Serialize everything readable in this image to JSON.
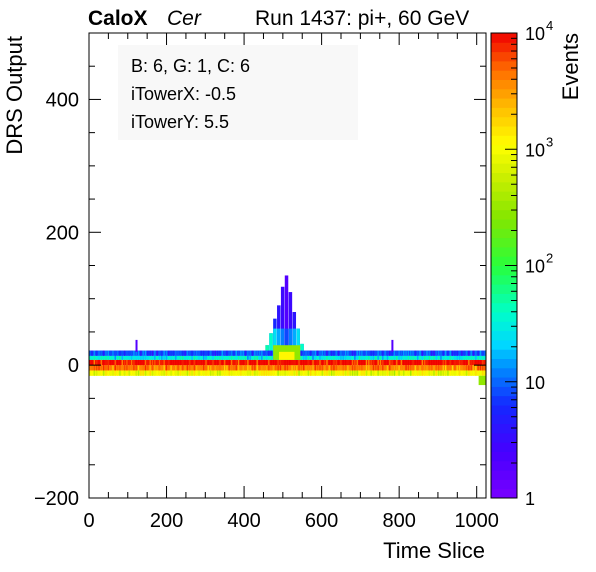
{
  "header": {
    "brand": "CaloX",
    "channel": "Cer",
    "run_info": "Run 1437: pi+, 60 GeV"
  },
  "info_box": {
    "line1": "B: 6, G: 1, C: 6",
    "line2": "iTowerX: -0.5",
    "line3": "iTowerY: 5.5"
  },
  "chart_data": {
    "type": "heatmap",
    "title": "Run 1437: pi+, 60 GeV",
    "xlabel": "Time Slice",
    "ylabel": "DRS Output",
    "zlabel": "Events",
    "xlim": [
      0,
      1024
    ],
    "ylim": [
      -200,
      500
    ],
    "zlim": [
      1,
      10000
    ],
    "z_scale": "log",
    "x_ticks": [
      "0",
      "200",
      "400",
      "600",
      "800",
      "1000"
    ],
    "y_ticks": [
      "−200",
      "0",
      "200",
      "400"
    ],
    "z_ticks": [
      {
        "value": 1,
        "label": "1"
      },
      {
        "value": 10,
        "label": "10"
      },
      {
        "value": 100,
        "label": "10",
        "exp": "2"
      },
      {
        "value": 1000,
        "label": "10",
        "exp": "3"
      },
      {
        "value": 10000,
        "label": "10",
        "exp": "4"
      }
    ],
    "bands": [
      {
        "x": [
          0,
          1024
        ],
        "y": [
          -16,
          -8
        ],
        "z": 900
      },
      {
        "x": [
          0,
          1024
        ],
        "y": [
          -8,
          0
        ],
        "z": 4000
      },
      {
        "x": [
          0,
          1024
        ],
        "y": [
          0,
          8
        ],
        "z": 9000
      },
      {
        "x": [
          0,
          1024
        ],
        "y": [
          8,
          14
        ],
        "z": 30
      },
      {
        "x": [
          0,
          1024
        ],
        "y": [
          14,
          22
        ],
        "z": 8
      }
    ],
    "peak": {
      "x_center": 505,
      "y_columns": [
        {
          "x": 455,
          "top": 30,
          "z": 12
        },
        {
          "x": 465,
          "top": 48,
          "z": 10
        },
        {
          "x": 475,
          "top": 70,
          "z": 6
        },
        {
          "x": 485,
          "top": 90,
          "z": 4
        },
        {
          "x": 495,
          "top": 118,
          "z": 3
        },
        {
          "x": 505,
          "top": 135,
          "z": 2
        },
        {
          "x": 515,
          "top": 110,
          "z": 3
        },
        {
          "x": 525,
          "top": 80,
          "z": 4
        },
        {
          "x": 535,
          "top": 55,
          "z": 6
        },
        {
          "x": 545,
          "top": 32,
          "z": 10
        }
      ],
      "core": {
        "x": [
          475,
          545
        ],
        "y": [
          8,
          30
        ],
        "z": 300
      }
    },
    "spikes": [
      {
        "x": 120,
        "y": [
          20,
          38
        ],
        "z": 2
      },
      {
        "x": 780,
        "y": [
          20,
          38
        ],
        "z": 2
      }
    ],
    "tail": {
      "x": [
        1005,
        1024
      ],
      "y": [
        -30,
        -16
      ],
      "z": 300
    }
  }
}
